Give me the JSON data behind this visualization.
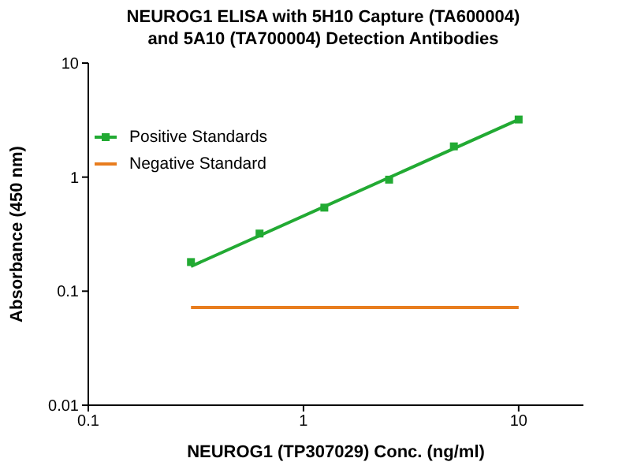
{
  "chart_data": {
    "type": "scatter",
    "title": "NEUROG1 ELISA with 5H10 Capture (TA600004)\nand 5A10 (TA700004) Detection Antibodies",
    "xlabel": "NEUROG1 (TP307029) Conc. (ng/ml)",
    "ylabel": "Absorbance (450 nm)",
    "log": "xy",
    "xlim": [
      0.1,
      20
    ],
    "xticks": [
      0.1,
      1,
      10
    ],
    "ylim": [
      0.01,
      10
    ],
    "yticks": [
      0.01,
      0.1,
      1,
      10
    ],
    "legend": "top left",
    "series": [
      {
        "name": "Positive Standards",
        "marker": "square",
        "color": "#22aa33",
        "x": [
          0.3,
          0.625,
          1.25,
          2.5,
          5,
          10
        ],
        "values": [
          0.18,
          0.32,
          0.54,
          0.95,
          1.86,
          3.2
        ]
      },
      {
        "type": "line",
        "color": "#22aa33",
        "x": [
          0.3,
          10
        ],
        "values": [
          0.165,
          3.2
        ]
      },
      {
        "name": "Negative Standard",
        "type": "line",
        "color": "#e87d1e",
        "x": [
          0.3,
          10
        ],
        "values": [
          0.072,
          0.072
        ]
      }
    ]
  }
}
